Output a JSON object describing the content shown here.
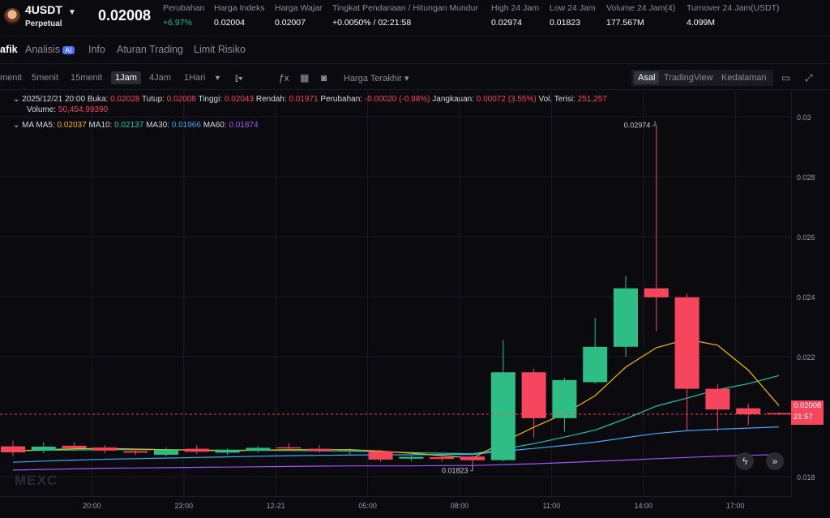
{
  "header": {
    "symbol": "4USDT",
    "contract_type": "Perpetual",
    "last_price": "0.02008",
    "stats": [
      {
        "label": "Perubahan",
        "value": "+6.97%"
      },
      {
        "label": "Harga Indeks",
        "value": "0.02004"
      },
      {
        "label": "Harga Wajar",
        "value": "0.02007"
      },
      {
        "label": "Tingkat Pendanaan / Hitungan Mundur",
        "value": "+0.0050% / 02:21:58"
      },
      {
        "label": "High 24 Jam",
        "value": "0.02974"
      },
      {
        "label": "Low 24 Jam",
        "value": "0.01823"
      },
      {
        "label": "Volume 24 Jam(4)",
        "value": "177.567M"
      },
      {
        "label": "Turnover 24 Jam(USDT)",
        "value": "4.099M"
      }
    ]
  },
  "tabs": {
    "grafik": "afik",
    "analisis": "Analisis",
    "analisis_badge": "AI",
    "info": "Info",
    "aturan": "Aturan Trading",
    "limit": "Limit Risiko"
  },
  "toolbar": {
    "timeframes": [
      "menit",
      "5menit",
      "15menit",
      "1Jam",
      "4Jam",
      "1Hari"
    ],
    "active_timeframe": "1Jam",
    "price_type": "Harga Terakhir",
    "views": [
      "Asal",
      "TradingView",
      "Kedalaman"
    ],
    "active_view": "Asal"
  },
  "legend": {
    "date": "2025/12/21 20:00",
    "open_label": "Buka:",
    "open": "0.02028",
    "close_label": "Tutup:",
    "close": "0.02008",
    "high_label": "Tinggi:",
    "high": "0.02043",
    "low_label": "Rendah:",
    "low": "0.01971",
    "change_label": "Perubahan:",
    "change": "-0.00020 (-0.98%)",
    "range_label": "Jangkauan:",
    "range": "0.00072 (3.55%)",
    "vol_label": "Vol. Terisi:",
    "vol": "251,257",
    "volume_label": "Volume:",
    "volume": "50,454.99390",
    "ma_label": "MA",
    "ma5_label": "MA5:",
    "ma5": "0.02037",
    "ma10_label": "MA10:",
    "ma10": "0.02137",
    "ma30_label": "MA30:",
    "ma30": "0.01966",
    "ma60_label": "MA60:",
    "ma60": "0.01874"
  },
  "chart_annotations": {
    "high_marker": "0.02974",
    "low_marker": "0.01823",
    "price_tag": "0.02008",
    "countdown": "21:57",
    "watermark": "MEXC"
  },
  "colors": {
    "up": "#2ebd85",
    "down": "#f6465d",
    "ma5": "#f0b90b",
    "ma10": "#1ec8a6",
    "ma30": "#3fa9f5",
    "ma60": "#9b59ff"
  },
  "chart_data": {
    "type": "candlestick",
    "interval": "1Jam",
    "y_ticks": [
      "0.03",
      "0.028",
      "0.026",
      "0.024",
      "0.022",
      "0.018"
    ],
    "x_ticks": [
      "20:00",
      "23:00",
      "12-21",
      "05:00",
      "08:00",
      "11:00",
      "14:00",
      "17:00"
    ],
    "ylim": [
      0.0176,
      0.0314
    ],
    "candles": [
      {
        "o": 0.01901,
        "c": 0.01881,
        "h": 0.0192,
        "l": 0.01868
      },
      {
        "o": 0.01888,
        "c": 0.019,
        "h": 0.01915,
        "l": 0.01878
      },
      {
        "o": 0.01903,
        "c": 0.01895,
        "h": 0.01915,
        "l": 0.01885
      },
      {
        "o": 0.01897,
        "c": 0.01887,
        "h": 0.01905,
        "l": 0.01878
      },
      {
        "o": 0.01885,
        "c": 0.0188,
        "h": 0.01893,
        "l": 0.01872
      },
      {
        "o": 0.01873,
        "c": 0.0189,
        "h": 0.01898,
        "l": 0.01868
      },
      {
        "o": 0.01893,
        "c": 0.01883,
        "h": 0.01905,
        "l": 0.01876
      },
      {
        "o": 0.0188,
        "c": 0.01888,
        "h": 0.01894,
        "l": 0.01872
      },
      {
        "o": 0.01886,
        "c": 0.01896,
        "h": 0.01902,
        "l": 0.0188
      },
      {
        "o": 0.01898,
        "c": 0.01895,
        "h": 0.01912,
        "l": 0.0189
      },
      {
        "o": 0.01893,
        "c": 0.01886,
        "h": 0.01905,
        "l": 0.0188
      },
      {
        "o": 0.01885,
        "c": 0.01888,
        "h": 0.01894,
        "l": 0.01874
      },
      {
        "o": 0.01884,
        "c": 0.01857,
        "h": 0.0189,
        "l": 0.0185
      },
      {
        "o": 0.0186,
        "c": 0.01866,
        "h": 0.0187,
        "l": 0.01852
      },
      {
        "o": 0.01865,
        "c": 0.01859,
        "h": 0.01875,
        "l": 0.0185
      },
      {
        "o": 0.01867,
        "c": 0.01855,
        "h": 0.0187,
        "l": 0.01823
      },
      {
        "o": 0.01855,
        "c": 0.02148,
        "h": 0.02255,
        "l": 0.0185
      },
      {
        "o": 0.02148,
        "c": 0.01995,
        "h": 0.0216,
        "l": 0.0193
      },
      {
        "o": 0.01995,
        "c": 0.02122,
        "h": 0.0213,
        "l": 0.0195
      },
      {
        "o": 0.02115,
        "c": 0.02233,
        "h": 0.0233,
        "l": 0.0211
      },
      {
        "o": 0.02233,
        "c": 0.02428,
        "h": 0.0247,
        "l": 0.022
      },
      {
        "o": 0.02428,
        "c": 0.02398,
        "h": 0.02974,
        "l": 0.02285
      },
      {
        "o": 0.02398,
        "c": 0.02093,
        "h": 0.0241,
        "l": 0.01955
      },
      {
        "o": 0.02093,
        "c": 0.02024,
        "h": 0.02108,
        "l": 0.0195
      },
      {
        "o": 0.02028,
        "c": 0.02008,
        "h": 0.02043,
        "l": 0.01971
      },
      {
        "o": 0.02012,
        "c": 0.0201,
        "h": 0.02015,
        "l": 0.02005
      }
    ],
    "ma5": [
      0.01885,
      0.0189,
      0.01893,
      0.01894,
      0.01892,
      0.0189,
      0.01888,
      0.01886,
      0.01888,
      0.0189,
      0.0189,
      0.0189,
      0.01885,
      0.01878,
      0.0187,
      0.01862,
      0.01915,
      0.01965,
      0.0201,
      0.0207,
      0.02165,
      0.0223,
      0.02258,
      0.02238,
      0.02155,
      0.02037
    ],
    "ma10": [
      0.01886,
      0.01888,
      0.01889,
      0.0189,
      0.0189,
      0.0189,
      0.01889,
      0.01888,
      0.01888,
      0.01887,
      0.01886,
      0.01885,
      0.01883,
      0.0188,
      0.01878,
      0.01876,
      0.01892,
      0.0191,
      0.01932,
      0.01955,
      0.01993,
      0.02035,
      0.02062,
      0.0209,
      0.0211,
      0.02137
    ],
    "ma30": [
      0.01848,
      0.01852,
      0.01855,
      0.01858,
      0.0186,
      0.01862,
      0.01864,
      0.01866,
      0.01868,
      0.0187,
      0.01871,
      0.01872,
      0.01873,
      0.01873,
      0.01874,
      0.01874,
      0.01885,
      0.01894,
      0.01904,
      0.01915,
      0.0193,
      0.01944,
      0.01953,
      0.01958,
      0.01962,
      0.01966
    ],
    "ma60": [
      0.01822,
      0.01824,
      0.01826,
      0.01828,
      0.01829,
      0.0183,
      0.01831,
      0.01832,
      0.01833,
      0.01834,
      0.01835,
      0.01836,
      0.01836,
      0.01836,
      0.01837,
      0.01837,
      0.0184,
      0.01843,
      0.01847,
      0.01851,
      0.01855,
      0.0186,
      0.01864,
      0.01868,
      0.01871,
      0.01874
    ]
  }
}
